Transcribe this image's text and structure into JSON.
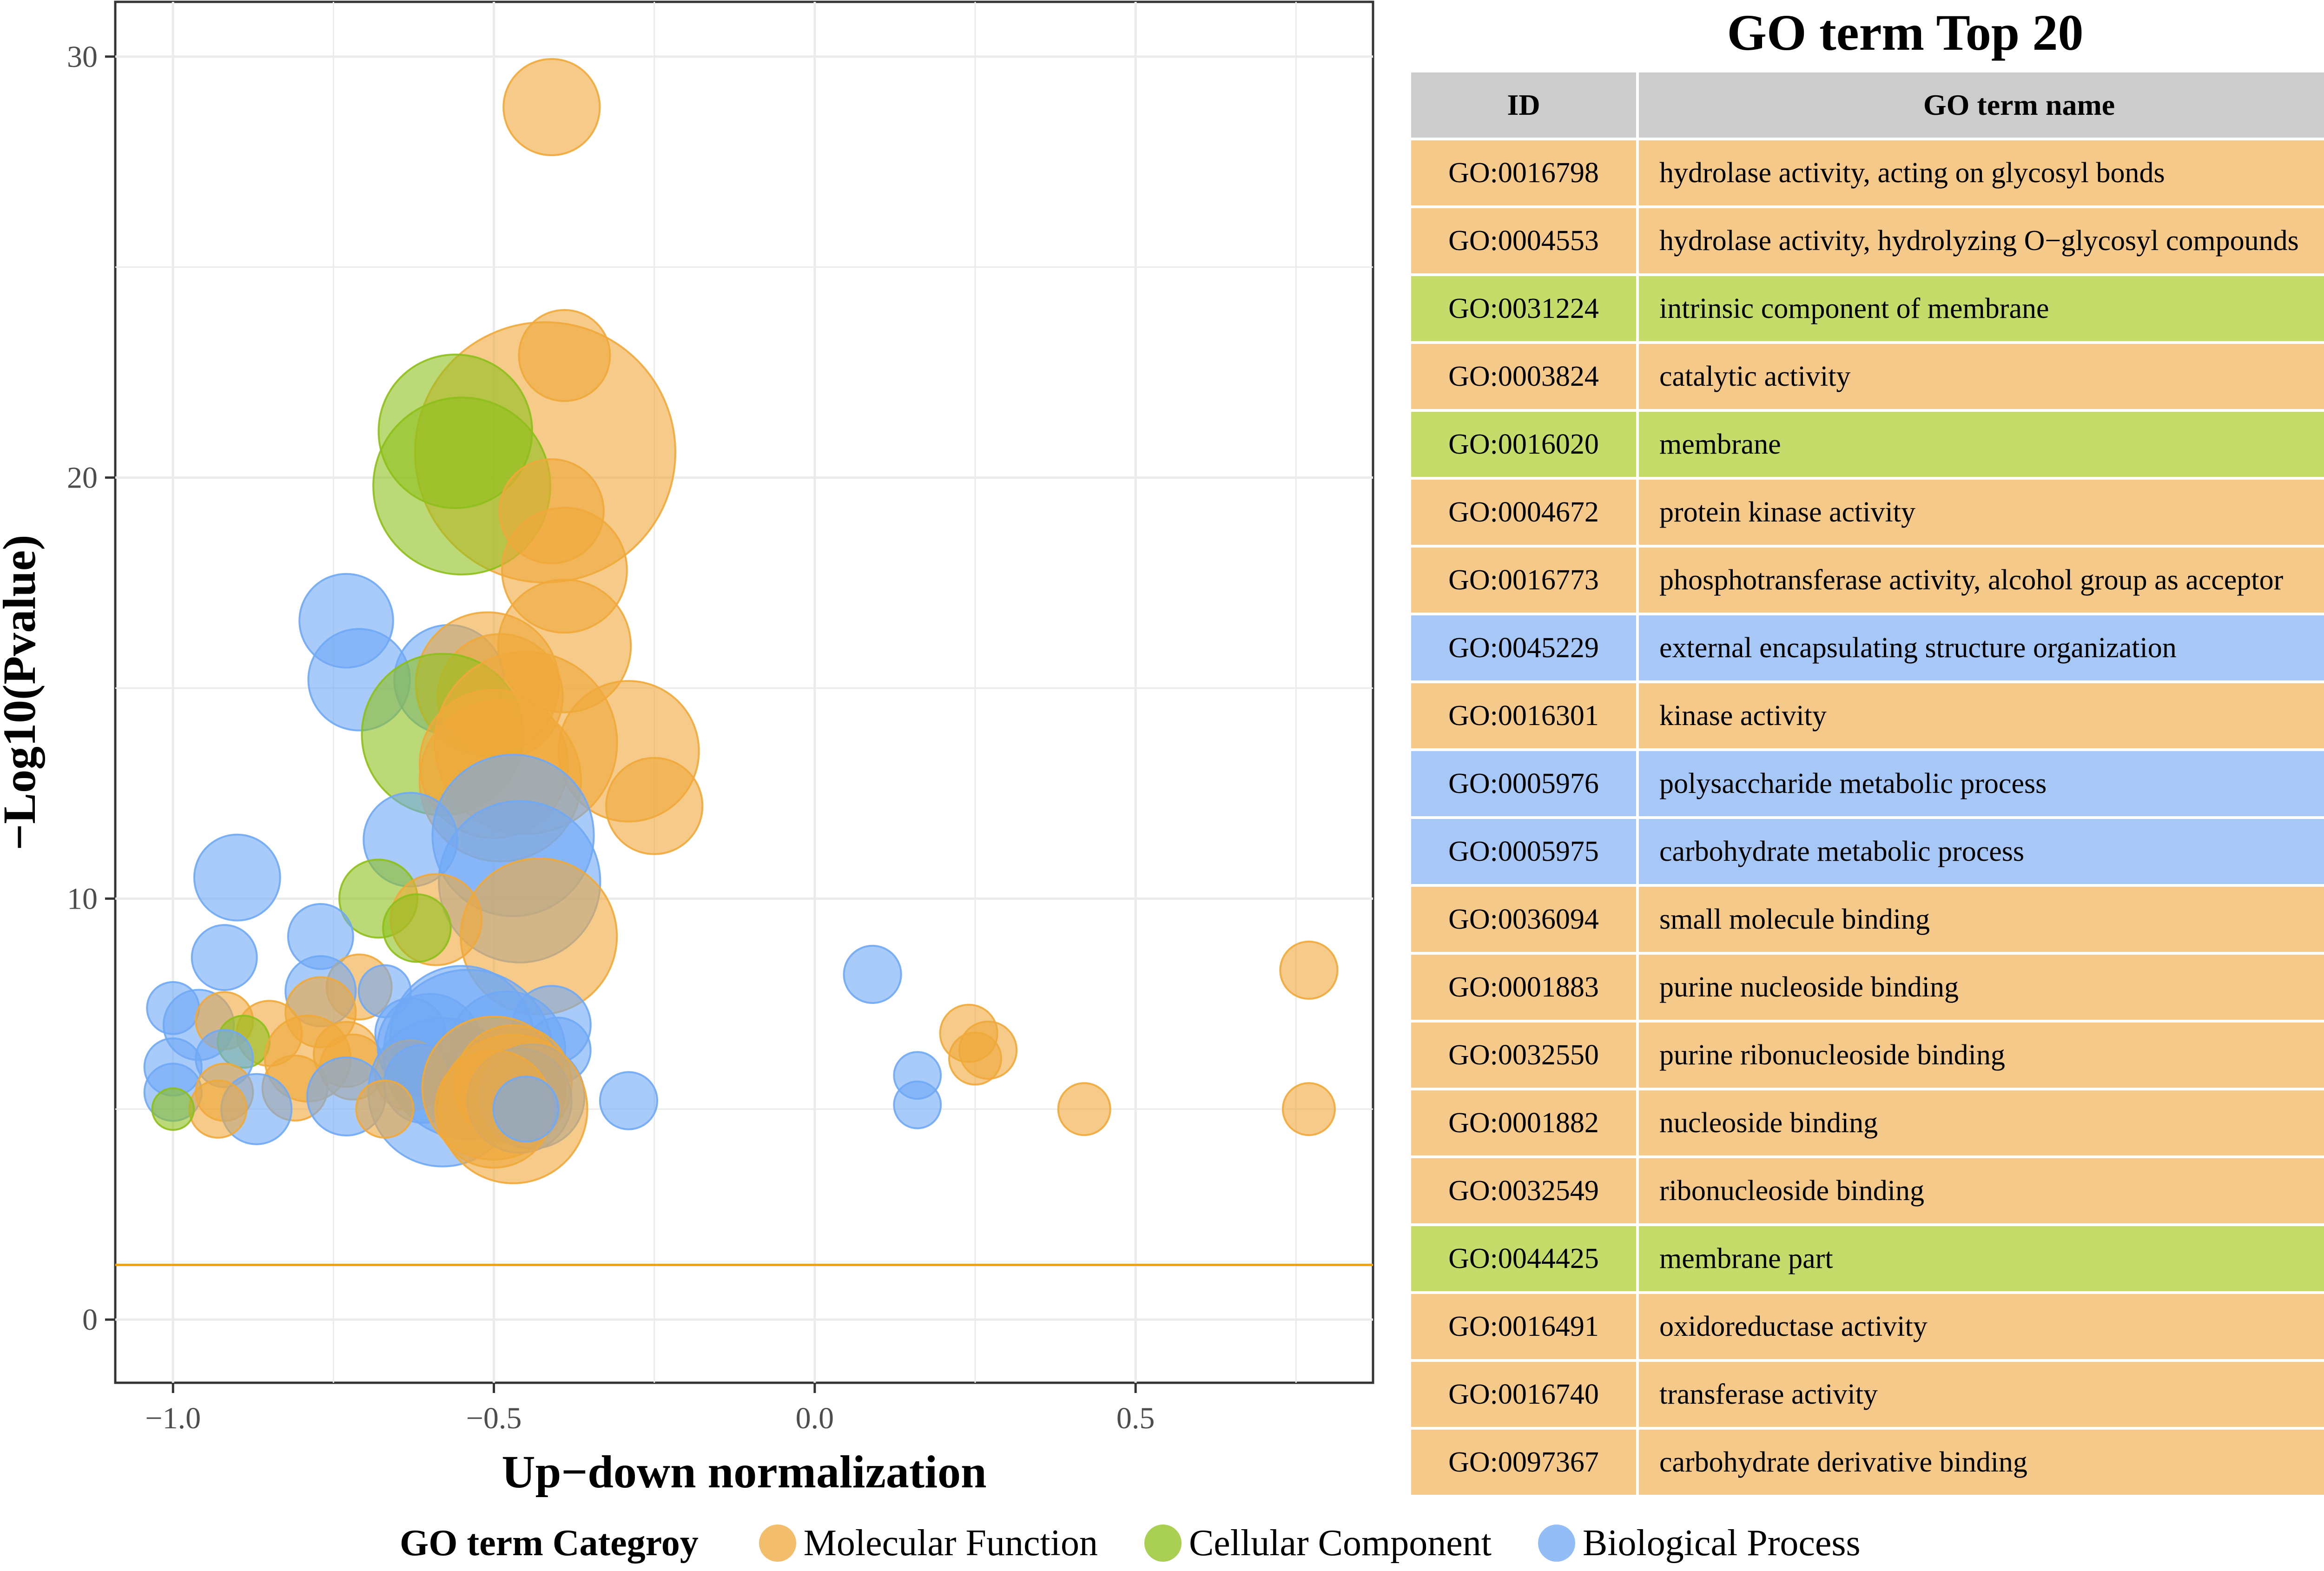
{
  "colors": {
    "Molecular Function": "#F0A93A",
    "Cellular Component": "#8DBF1A",
    "Biological Process": "#6FA8F5",
    "threshold": "#F5A300",
    "table_MF": "#F5C98A",
    "table_CC": "#C5DC6A",
    "table_BP": "#A7C8F7",
    "header": "#CCCCCC"
  },
  "chart_data": {
    "type": "scatter",
    "xlabel": "Up−down normalization",
    "ylabel": "−Log10(Pvalue)",
    "xlim": [
      -1.09,
      0.87
    ],
    "ylim": [
      -1.5,
      31.3
    ],
    "x_ticks": [
      -1.0,
      -0.5,
      0.0,
      0.5
    ],
    "x_tick_labels": [
      "−1.0",
      "−0.5",
      "0.0",
      "0.5"
    ],
    "y_ticks": [
      0,
      10,
      20,
      30
    ],
    "y_tick_labels": [
      "0",
      "10",
      "20",
      "30"
    ],
    "threshold_y": 1.3,
    "grid": true,
    "size_note": "r is relative bubble size in data-free units (0-1 scale)",
    "points": [
      {
        "x": -0.41,
        "y": 28.8,
        "r": 0.37,
        "c": "Molecular Function"
      },
      {
        "x": -0.39,
        "y": 22.9,
        "r": 0.35,
        "c": "Molecular Function"
      },
      {
        "x": -0.42,
        "y": 20.6,
        "r": 1.0,
        "c": "Molecular Function"
      },
      {
        "x": -0.56,
        "y": 21.1,
        "r": 0.59,
        "c": "Cellular Component"
      },
      {
        "x": -0.55,
        "y": 19.8,
        "r": 0.68,
        "c": "Cellular Component"
      },
      {
        "x": -0.41,
        "y": 19.2,
        "r": 0.4,
        "c": "Molecular Function"
      },
      {
        "x": -0.39,
        "y": 17.8,
        "r": 0.48,
        "c": "Molecular Function"
      },
      {
        "x": -0.73,
        "y": 16.6,
        "r": 0.36,
        "c": "Biological Process"
      },
      {
        "x": -0.39,
        "y": 16.0,
        "r": 0.51,
        "c": "Molecular Function"
      },
      {
        "x": -0.71,
        "y": 15.2,
        "r": 0.39,
        "c": "Biological Process"
      },
      {
        "x": -0.57,
        "y": 15.2,
        "r": 0.42,
        "c": "Biological Process"
      },
      {
        "x": -0.51,
        "y": 15.1,
        "r": 0.55,
        "c": "Molecular Function"
      },
      {
        "x": -0.49,
        "y": 14.8,
        "r": 0.48,
        "c": "Molecular Function"
      },
      {
        "x": -0.58,
        "y": 13.9,
        "r": 0.62,
        "c": "Cellular Component"
      },
      {
        "x": -0.45,
        "y": 13.7,
        "r": 0.7,
        "c": "Molecular Function"
      },
      {
        "x": -0.29,
        "y": 13.5,
        "r": 0.54,
        "c": "Molecular Function"
      },
      {
        "x": -0.5,
        "y": 13.2,
        "r": 0.57,
        "c": "Molecular Function"
      },
      {
        "x": -0.49,
        "y": 12.8,
        "r": 0.62,
        "c": "Molecular Function"
      },
      {
        "x": -0.25,
        "y": 12.2,
        "r": 0.37,
        "c": "Molecular Function"
      },
      {
        "x": -0.47,
        "y": 11.5,
        "r": 0.62,
        "c": "Biological Process"
      },
      {
        "x": -0.63,
        "y": 11.4,
        "r": 0.36,
        "c": "Biological Process"
      },
      {
        "x": -0.9,
        "y": 10.5,
        "r": 0.33,
        "c": "Biological Process"
      },
      {
        "x": -0.46,
        "y": 10.4,
        "r": 0.62,
        "c": "Biological Process"
      },
      {
        "x": -0.68,
        "y": 10.0,
        "r": 0.3,
        "c": "Cellular Component"
      },
      {
        "x": -0.59,
        "y": 9.5,
        "r": 0.35,
        "c": "Molecular Function"
      },
      {
        "x": -0.62,
        "y": 9.3,
        "r": 0.26,
        "c": "Cellular Component"
      },
      {
        "x": -0.77,
        "y": 9.1,
        "r": 0.25,
        "c": "Biological Process"
      },
      {
        "x": -0.43,
        "y": 9.1,
        "r": 0.6,
        "c": "Molecular Function"
      },
      {
        "x": -0.92,
        "y": 8.6,
        "r": 0.25,
        "c": "Biological Process"
      },
      {
        "x": 0.09,
        "y": 8.2,
        "r": 0.22,
        "c": "Biological Process"
      },
      {
        "x": 0.77,
        "y": 8.3,
        "r": 0.22,
        "c": "Molecular Function"
      },
      {
        "x": -0.71,
        "y": 7.9,
        "r": 0.25,
        "c": "Molecular Function"
      },
      {
        "x": -0.67,
        "y": 7.8,
        "r": 0.2,
        "c": "Biological Process"
      },
      {
        "x": -0.77,
        "y": 7.8,
        "r": 0.27,
        "c": "Biological Process"
      },
      {
        "x": -1.0,
        "y": 7.4,
        "r": 0.2,
        "c": "Biological Process"
      },
      {
        "x": -0.96,
        "y": 7.0,
        "r": 0.27,
        "c": "Biological Process"
      },
      {
        "x": -0.92,
        "y": 7.1,
        "r": 0.22,
        "c": "Molecular Function"
      },
      {
        "x": -0.85,
        "y": 6.8,
        "r": 0.25,
        "c": "Molecular Function"
      },
      {
        "x": -0.77,
        "y": 7.3,
        "r": 0.27,
        "c": "Molecular Function"
      },
      {
        "x": -0.89,
        "y": 6.6,
        "r": 0.2,
        "c": "Cellular Component"
      },
      {
        "x": -0.79,
        "y": 6.2,
        "r": 0.33,
        "c": "Molecular Function"
      },
      {
        "x": -0.73,
        "y": 6.3,
        "r": 0.25,
        "c": "Molecular Function"
      },
      {
        "x": -0.72,
        "y": 6.0,
        "r": 0.25,
        "c": "Molecular Function"
      },
      {
        "x": -0.63,
        "y": 6.8,
        "r": 0.27,
        "c": "Biological Process"
      },
      {
        "x": -0.6,
        "y": 6.5,
        "r": 0.4,
        "c": "Biological Process"
      },
      {
        "x": -0.55,
        "y": 6.7,
        "r": 0.55,
        "c": "Biological Process"
      },
      {
        "x": -0.54,
        "y": 6.3,
        "r": 0.65,
        "c": "Biological Process"
      },
      {
        "x": -0.48,
        "y": 6.4,
        "r": 0.45,
        "c": "Biological Process"
      },
      {
        "x": -0.41,
        "y": 7.0,
        "r": 0.3,
        "c": "Biological Process"
      },
      {
        "x": -0.4,
        "y": 6.4,
        "r": 0.25,
        "c": "Biological Process"
      },
      {
        "x": -1.0,
        "y": 6.0,
        "r": 0.22,
        "c": "Biological Process"
      },
      {
        "x": -0.92,
        "y": 6.2,
        "r": 0.22,
        "c": "Biological Process"
      },
      {
        "x": -0.63,
        "y": 5.8,
        "r": 0.27,
        "c": "Molecular Function"
      },
      {
        "x": -0.61,
        "y": 5.6,
        "r": 0.3,
        "c": "Biological Process"
      },
      {
        "x": -1.0,
        "y": 5.4,
        "r": 0.22,
        "c": "Biological Process"
      },
      {
        "x": -0.92,
        "y": 5.4,
        "r": 0.22,
        "c": "Molecular Function"
      },
      {
        "x": -0.81,
        "y": 5.5,
        "r": 0.25,
        "c": "Molecular Function"
      },
      {
        "x": -0.73,
        "y": 5.3,
        "r": 0.3,
        "c": "Biological Process"
      },
      {
        "x": -0.58,
        "y": 5.4,
        "r": 0.57,
        "c": "Biological Process"
      },
      {
        "x": -0.5,
        "y": 5.5,
        "r": 0.55,
        "c": "Molecular Function"
      },
      {
        "x": -0.47,
        "y": 5.6,
        "r": 0.45,
        "c": "Molecular Function"
      },
      {
        "x": -0.46,
        "y": 5.2,
        "r": 0.4,
        "c": "Biological Process"
      },
      {
        "x": -0.44,
        "y": 5.3,
        "r": 0.4,
        "c": "Biological Process"
      },
      {
        "x": -0.47,
        "y": 5.0,
        "r": 0.57,
        "c": "Molecular Function"
      },
      {
        "x": -0.5,
        "y": 5.0,
        "r": 0.45,
        "c": "Molecular Function"
      },
      {
        "x": -0.45,
        "y": 5.0,
        "r": 0.25,
        "c": "Biological Process"
      },
      {
        "x": -0.29,
        "y": 5.2,
        "r": 0.22,
        "c": "Biological Process"
      },
      {
        "x": -0.67,
        "y": 5.0,
        "r": 0.22,
        "c": "Molecular Function"
      },
      {
        "x": -0.87,
        "y": 5.0,
        "r": 0.27,
        "c": "Biological Process"
      },
      {
        "x": -0.93,
        "y": 5.0,
        "r": 0.22,
        "c": "Molecular Function"
      },
      {
        "x": -1.0,
        "y": 5.0,
        "r": 0.16,
        "c": "Cellular Component"
      },
      {
        "x": 0.16,
        "y": 5.8,
        "r": 0.18,
        "c": "Biological Process"
      },
      {
        "x": 0.16,
        "y": 5.1,
        "r": 0.18,
        "c": "Biological Process"
      },
      {
        "x": 0.24,
        "y": 6.8,
        "r": 0.22,
        "c": "Molecular Function"
      },
      {
        "x": 0.27,
        "y": 6.4,
        "r": 0.22,
        "c": "Molecular Function"
      },
      {
        "x": 0.25,
        "y": 6.2,
        "r": 0.2,
        "c": "Molecular Function"
      },
      {
        "x": 0.42,
        "y": 5.0,
        "r": 0.2,
        "c": "Molecular Function"
      },
      {
        "x": 0.77,
        "y": 5.0,
        "r": 0.2,
        "c": "Molecular Function"
      }
    ]
  },
  "table": {
    "title": "GO term Top 20",
    "headers": [
      "ID",
      "GO term name"
    ],
    "rows": [
      {
        "id": "GO:0016798",
        "name": "hydrolase activity, acting on glycosyl bonds",
        "cat": "MF"
      },
      {
        "id": "GO:0004553",
        "name": "hydrolase activity, hydrolyzing O−glycosyl compounds",
        "cat": "MF"
      },
      {
        "id": "GO:0031224",
        "name": "intrinsic component of membrane",
        "cat": "CC"
      },
      {
        "id": "GO:0003824",
        "name": "catalytic activity",
        "cat": "MF"
      },
      {
        "id": "GO:0016020",
        "name": "membrane",
        "cat": "CC"
      },
      {
        "id": "GO:0004672",
        "name": "protein kinase activity",
        "cat": "MF"
      },
      {
        "id": "GO:0016773",
        "name": "phosphotransferase activity, alcohol group as acceptor",
        "cat": "MF"
      },
      {
        "id": "GO:0045229",
        "name": "external encapsulating structure organization",
        "cat": "BP"
      },
      {
        "id": "GO:0016301",
        "name": "kinase activity",
        "cat": "MF"
      },
      {
        "id": "GO:0005976",
        "name": "polysaccharide metabolic process",
        "cat": "BP"
      },
      {
        "id": "GO:0005975",
        "name": "carbohydrate metabolic process",
        "cat": "BP"
      },
      {
        "id": "GO:0036094",
        "name": "small molecule binding",
        "cat": "MF"
      },
      {
        "id": "GO:0001883",
        "name": "purine nucleoside binding",
        "cat": "MF"
      },
      {
        "id": "GO:0032550",
        "name": "purine ribonucleoside binding",
        "cat": "MF"
      },
      {
        "id": "GO:0001882",
        "name": "nucleoside binding",
        "cat": "MF"
      },
      {
        "id": "GO:0032549",
        "name": "ribonucleoside binding",
        "cat": "MF"
      },
      {
        "id": "GO:0044425",
        "name": "membrane part",
        "cat": "CC"
      },
      {
        "id": "GO:0016491",
        "name": "oxidoreductase activity",
        "cat": "MF"
      },
      {
        "id": "GO:0016740",
        "name": "transferase activity",
        "cat": "MF"
      },
      {
        "id": "GO:0097367",
        "name": "carbohydrate derivative binding",
        "cat": "MF"
      }
    ]
  },
  "legend": {
    "title": "GO term Categroy",
    "items": [
      {
        "label": "Molecular Function",
        "key": "Molecular Function"
      },
      {
        "label": "Cellular Component",
        "key": "Cellular Component"
      },
      {
        "label": "Biological Process",
        "key": "Biological Process"
      }
    ]
  }
}
